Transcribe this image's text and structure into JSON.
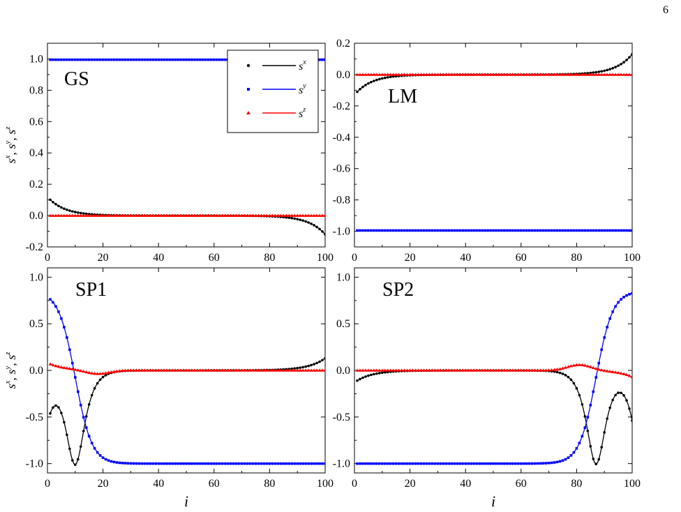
{
  "page_number": "6",
  "colors": {
    "sx": "#000000",
    "sy": "#0000ff",
    "sz": "#ff0000"
  },
  "legend": [
    {
      "label": "s",
      "sup": "x",
      "color": "#000000",
      "marker": "circle"
    },
    {
      "label": "s",
      "sup": "y",
      "color": "#0000ff",
      "marker": "square"
    },
    {
      "label": "s",
      "sup": "z",
      "color": "#ff0000",
      "marker": "triangle"
    }
  ],
  "shared_ylabel": {
    "base": "s",
    "parts": [
      "x",
      "y",
      "z"
    ]
  },
  "shared_xlabel": "i",
  "chart_data": [
    {
      "type": "line",
      "panel_label": "GS",
      "xlim": [
        0,
        100
      ],
      "ylim": [
        -0.2,
        1.1
      ],
      "xticks": [
        "0",
        "20",
        "40",
        "60",
        "80",
        "100"
      ],
      "yticks": [
        "-0.2",
        "0.0",
        "0.2",
        "0.4",
        "0.6",
        "0.8",
        "1.0"
      ],
      "xlabel": "",
      "ylabel": "",
      "legend_position": "top-right",
      "profiles": {
        "sx": {
          "kind": "edges",
          "left": 0.12,
          "right": -0.12,
          "decay": 6
        },
        "sy": {
          "kind": "const",
          "value": 0.995
        },
        "sz": {
          "kind": "const",
          "value": 0.0
        }
      }
    },
    {
      "type": "line",
      "panel_label": "LM",
      "xlim": [
        0,
        100
      ],
      "ylim": [
        -1.1,
        0.2
      ],
      "xticks": [
        "0",
        "20",
        "40",
        "60",
        "80",
        "100"
      ],
      "yticks": [
        "-1.0",
        "-0.8",
        "-0.6",
        "-0.4",
        "-0.2",
        "0.0",
        "0.2"
      ],
      "xlabel": "",
      "ylabel": "",
      "profiles": {
        "sx": {
          "kind": "edges",
          "left": -0.13,
          "right": 0.13,
          "decay": 6
        },
        "sy": {
          "kind": "const",
          "value": -0.995
        },
        "sz": {
          "kind": "const",
          "value": 0.0
        }
      }
    },
    {
      "type": "line",
      "panel_label": "SP1",
      "xlim": [
        0,
        100
      ],
      "ylim": [
        -1.1,
        1.1
      ],
      "xticks": [
        "0",
        "20",
        "40",
        "60",
        "80",
        "100"
      ],
      "yticks": [
        "-1.0",
        "-0.5",
        "0.0",
        "0.5",
        "1.0"
      ],
      "xlabel": "i",
      "ylabel": "",
      "profiles": {
        "sx": {
          "kind": "wall",
          "center": 10,
          "width": 3,
          "edge_left": -0.52,
          "edge_right": 0.13
        },
        "sy": {
          "kind": "sigmoid",
          "center": 10,
          "width": 3,
          "left": 0.85,
          "right": -1.0
        },
        "sz": {
          "kind": "lump",
          "left": 0.08,
          "dip_center": 18,
          "dip": -0.04,
          "dip_width": 6
        }
      }
    },
    {
      "type": "line",
      "panel_label": "SP2",
      "xlim": [
        0,
        100
      ],
      "ylim": [
        -1.1,
        1.1
      ],
      "xticks": [
        "0",
        "20",
        "40",
        "60",
        "80",
        "100"
      ],
      "yticks": [
        "-1.0",
        "-0.5",
        "0.0",
        "0.5",
        "1.0"
      ],
      "xlabel": "i",
      "ylabel": "",
      "profiles": {
        "sx": {
          "kind": "wall_right",
          "center": 87,
          "width": 3,
          "edge_left": -0.13,
          "edge_right": -0.52
        },
        "sy": {
          "kind": "sigmoid",
          "center": 87,
          "width": 3,
          "left": -1.0,
          "right": 0.85
        },
        "sz": {
          "kind": "bump_right",
          "peak_center": 81,
          "peak": 0.06,
          "peak_width": 6,
          "right": -0.07
        }
      }
    }
  ]
}
